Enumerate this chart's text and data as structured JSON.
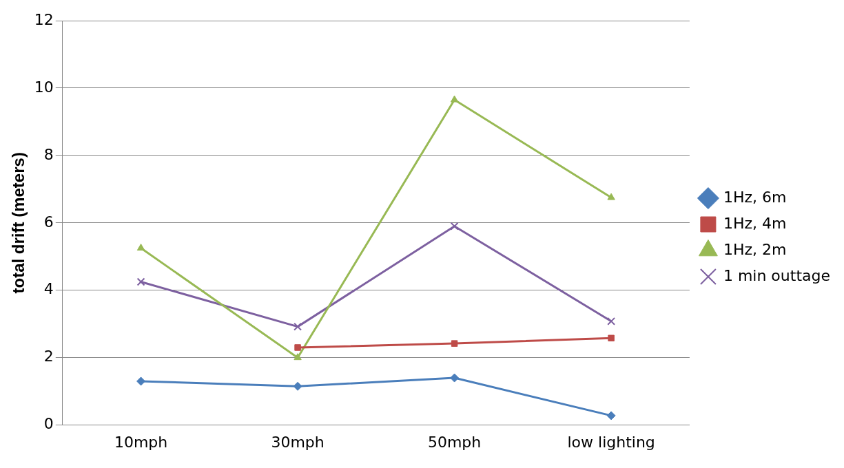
{
  "chart_data": {
    "type": "line",
    "ylabel": "total drift (meters)",
    "categories": [
      "10mph",
      "30mph",
      "50mph",
      "low lighting"
    ],
    "series": [
      {
        "name": "1Hz, 6m",
        "color": "#4a7ebb",
        "marker": "diamond",
        "values": [
          1.3,
          1.15,
          1.4,
          0.28
        ]
      },
      {
        "name": "1Hz, 4m",
        "color": "#be4b48",
        "marker": "square",
        "values": [
          null,
          2.3,
          2.42,
          2.58
        ]
      },
      {
        "name": "1Hz, 2m",
        "color": "#98b954",
        "marker": "triangle",
        "values": [
          5.25,
          2.0,
          9.65,
          6.75
        ]
      },
      {
        "name": "1 min outtage",
        "color": "#7d60a0",
        "marker": "cross",
        "values": [
          4.25,
          2.92,
          5.9,
          3.08
        ]
      }
    ],
    "ylim": [
      0,
      12
    ],
    "yticks": [
      0,
      2,
      4,
      6,
      8,
      10,
      12
    ],
    "grid": "y",
    "legend": "right"
  }
}
